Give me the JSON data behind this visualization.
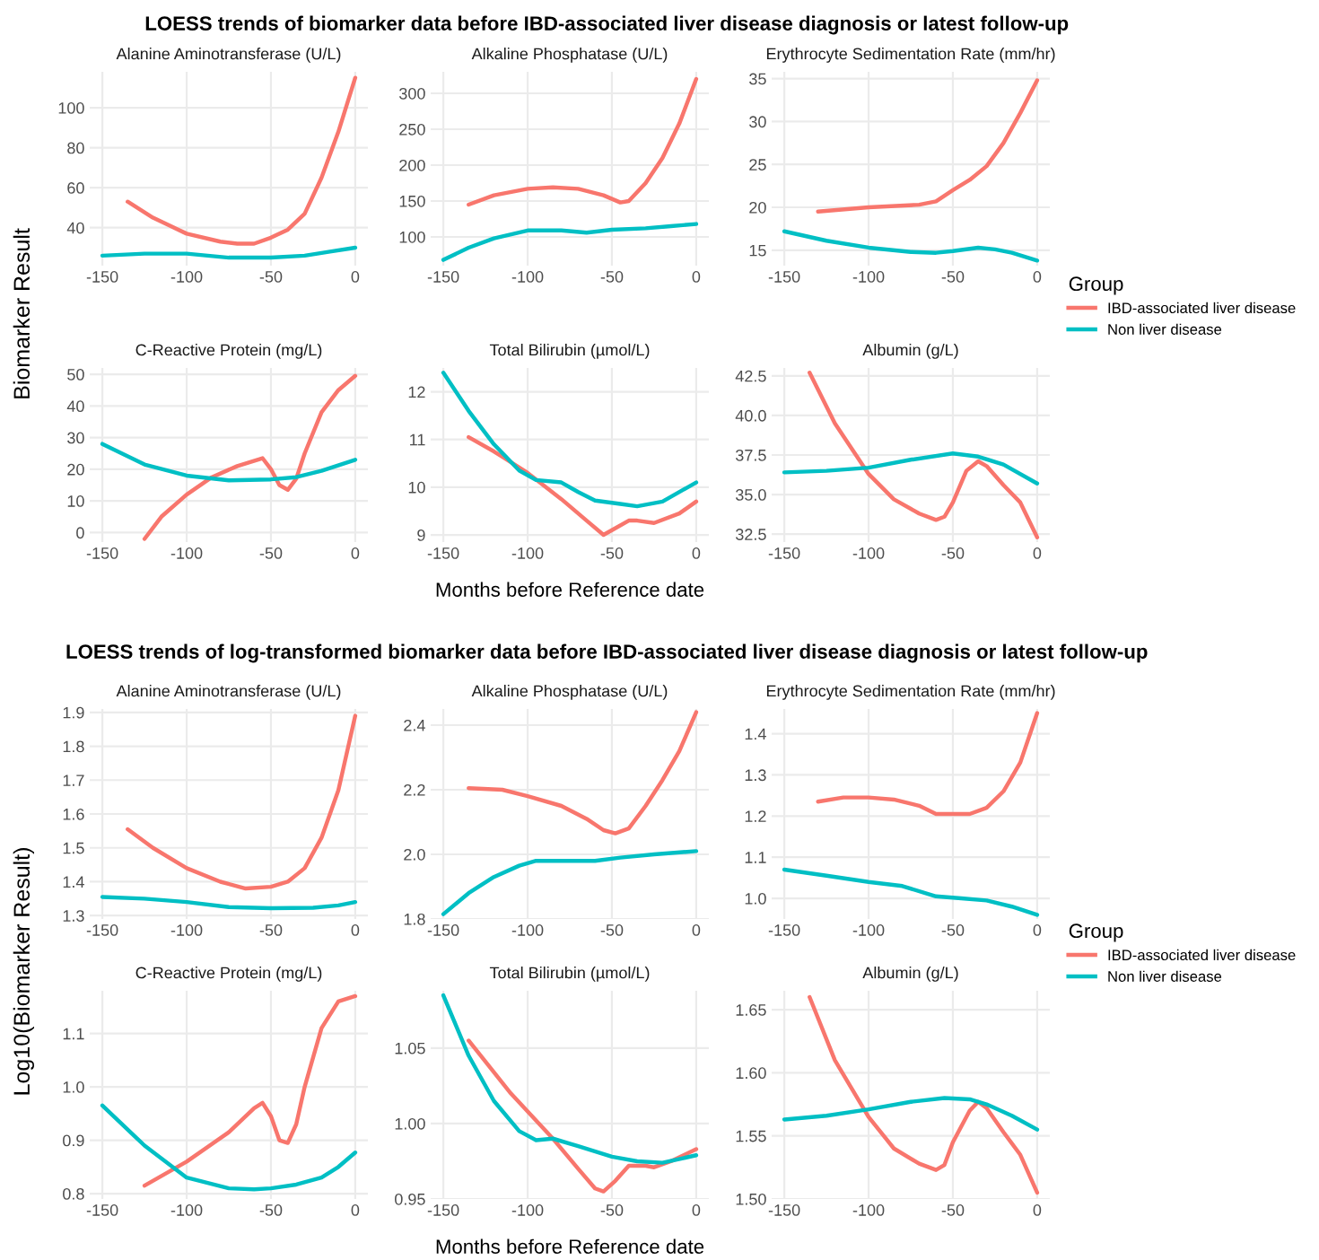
{
  "chart_data": [
    {
      "type": "line",
      "title": "Alanine Aminotransferase (U/L)",
      "ylabel": "Biomarker Result",
      "annotations": [
        "LOESS trends of biomarker data before IBD-associated liver disease diagnosis or latest follow-up"
      ],
      "xlim": [
        -157.5,
        7.5
      ],
      "xticks": [
        -150,
        -100,
        -50,
        0
      ],
      "ylim": [
        21,
        118
      ],
      "yticks": [
        40,
        60,
        80,
        100
      ],
      "grid": true,
      "series": [
        {
          "color": "#f8766d",
          "x": [
            -135,
            -120,
            -100,
            -80,
            -70,
            -60,
            -50,
            -40,
            -30,
            -20,
            -10,
            0
          ],
          "values": [
            53,
            45,
            37,
            33,
            32,
            32,
            35,
            39,
            47,
            65,
            88,
            115
          ]
        },
        {
          "color": "#00bfc4",
          "x": [
            -150,
            -125,
            -100,
            -75,
            -50,
            -30,
            -15,
            0
          ],
          "values": [
            26,
            27,
            27,
            25,
            25,
            26,
            28,
            30
          ]
        }
      ]
    },
    {
      "type": "line",
      "title": "Alkaline Phosphatase (U/L)",
      "xlim": [
        -157.5,
        7.5
      ],
      "xticks": [
        -150,
        -100,
        -50,
        0
      ],
      "ylim": [
        60,
        330
      ],
      "yticks": [
        100,
        150,
        200,
        250,
        300
      ],
      "grid": true,
      "series": [
        {
          "color": "#f8766d",
          "x": [
            -135,
            -120,
            -100,
            -85,
            -70,
            -55,
            -45,
            -40,
            -30,
            -20,
            -10,
            0
          ],
          "values": [
            145,
            158,
            167,
            169,
            167,
            158,
            148,
            150,
            175,
            210,
            258,
            320
          ]
        },
        {
          "color": "#00bfc4",
          "x": [
            -150,
            -135,
            -120,
            -100,
            -80,
            -65,
            -50,
            -30,
            -15,
            0
          ],
          "values": [
            68,
            85,
            98,
            109,
            109,
            106,
            110,
            112,
            115,
            118
          ]
        }
      ]
    },
    {
      "type": "line",
      "title": "Erythrocyte Sedimentation Rate (mm/hr)",
      "legend_title": "Group",
      "legend": "right",
      "xlim": [
        -157.5,
        7.5
      ],
      "xticks": [
        -150,
        -100,
        -50,
        0
      ],
      "ylim": [
        13.2,
        35.8
      ],
      "yticks": [
        15,
        20,
        25,
        30,
        35
      ],
      "grid": true,
      "series": [
        {
          "name": "IBD-associated liver disease",
          "color": "#f8766d",
          "x": [
            -130,
            -100,
            -70,
            -60,
            -50,
            -40,
            -30,
            -20,
            -10,
            0
          ],
          "values": [
            19.5,
            20,
            20.3,
            20.7,
            22,
            23.2,
            24.8,
            27.5,
            31,
            34.8
          ]
        },
        {
          "name": "Non liver disease",
          "color": "#00bfc4",
          "x": [
            -150,
            -125,
            -100,
            -75,
            -60,
            -50,
            -35,
            -25,
            -15,
            0
          ],
          "values": [
            17.2,
            16.1,
            15.3,
            14.8,
            14.7,
            14.9,
            15.3,
            15.1,
            14.7,
            13.8
          ]
        }
      ]
    },
    {
      "type": "line",
      "title": "C-Reactive Protein (mg/L)",
      "xlim": [
        -157.5,
        7.5
      ],
      "xticks": [
        -150,
        -100,
        -50,
        0
      ],
      "ylim": [
        -3,
        52
      ],
      "yticks": [
        0,
        10,
        20,
        30,
        40,
        50
      ],
      "grid": true,
      "series": [
        {
          "color": "#f8766d",
          "x": [
            -125,
            -115,
            -100,
            -85,
            -70,
            -55,
            -50,
            -45,
            -40,
            -35,
            -30,
            -20,
            -10,
            0
          ],
          "values": [
            -2,
            5,
            12,
            17.5,
            21,
            23.5,
            20,
            15,
            13.5,
            17,
            25,
            38,
            45,
            49.5
          ]
        },
        {
          "color": "#00bfc4",
          "x": [
            -150,
            -125,
            -100,
            -75,
            -50,
            -35,
            -20,
            0
          ],
          "values": [
            28,
            21.5,
            18,
            16.5,
            16.8,
            17.5,
            19.5,
            23
          ]
        }
      ]
    },
    {
      "type": "line",
      "title": "Total Bilirubin (µmol/L)",
      "xlabel": "Months before Reference date",
      "xlim": [
        -157.5,
        7.5
      ],
      "xticks": [
        -150,
        -100,
        -50,
        0
      ],
      "ylim": [
        8.85,
        12.5
      ],
      "yticks": [
        9,
        10,
        11,
        12
      ],
      "grid": true,
      "series": [
        {
          "color": "#f8766d",
          "x": [
            -135,
            -120,
            -100,
            -80,
            -65,
            -55,
            -50,
            -40,
            -35,
            -25,
            -10,
            0
          ],
          "values": [
            11.05,
            10.75,
            10.3,
            9.75,
            9.3,
            9.0,
            9.1,
            9.3,
            9.3,
            9.25,
            9.45,
            9.7
          ]
        },
        {
          "color": "#00bfc4",
          "x": [
            -150,
            -135,
            -120,
            -105,
            -95,
            -80,
            -70,
            -60,
            -45,
            -35,
            -20,
            0
          ],
          "values": [
            12.4,
            11.6,
            10.9,
            10.35,
            10.15,
            10.1,
            9.9,
            9.72,
            9.65,
            9.6,
            9.7,
            10.1
          ]
        }
      ]
    },
    {
      "type": "line",
      "title": "Albumin (g/L)",
      "xlim": [
        -157.5,
        7.5
      ],
      "xticks": [
        -150,
        -100,
        -50,
        0
      ],
      "ylim": [
        32,
        43
      ],
      "yticks": [
        32.5,
        {
          "value": 35,
          "label": "35.0"
        },
        37.5,
        {
          "value": 40,
          "label": "40.0"
        },
        42.5
      ],
      "grid": true,
      "series": [
        {
          "color": "#f8766d",
          "x": [
            -135,
            -120,
            -100,
            -85,
            -70,
            -60,
            -55,
            -50,
            -42,
            -35,
            -30,
            -20,
            -10,
            0
          ],
          "values": [
            42.7,
            39.5,
            36.3,
            34.7,
            33.8,
            33.4,
            33.6,
            34.5,
            36.5,
            37.1,
            36.8,
            35.6,
            34.5,
            32.3
          ]
        },
        {
          "color": "#00bfc4",
          "x": [
            -150,
            -125,
            -100,
            -75,
            -50,
            -35,
            -20,
            0
          ],
          "values": [
            36.4,
            36.5,
            36.7,
            37.2,
            37.6,
            37.4,
            36.9,
            35.7
          ]
        }
      ]
    },
    {
      "type": "line",
      "title": "Alanine Aminotransferase (U/L)",
      "ylabel": "Log10(Biomarker Result)",
      "annotations": [
        "LOESS trends of log-transformed biomarker data before IBD-associated liver disease diagnosis or latest follow-up"
      ],
      "xlim": [
        -157.5,
        7.5
      ],
      "xticks": [
        -150,
        -100,
        -50,
        0
      ],
      "ylim": [
        1.29,
        1.91
      ],
      "yticks": [
        1.3,
        1.4,
        1.5,
        1.6,
        1.7,
        1.8,
        1.9
      ],
      "grid": true,
      "series": [
        {
          "color": "#f8766d",
          "x": [
            -135,
            -120,
            -100,
            -80,
            -65,
            -50,
            -40,
            -30,
            -20,
            -10,
            0
          ],
          "values": [
            1.555,
            1.5,
            1.44,
            1.4,
            1.38,
            1.385,
            1.4,
            1.44,
            1.53,
            1.67,
            1.89
          ]
        },
        {
          "color": "#00bfc4",
          "x": [
            -150,
            -125,
            -100,
            -75,
            -50,
            -25,
            -10,
            0
          ],
          "values": [
            1.355,
            1.35,
            1.34,
            1.325,
            1.322,
            1.323,
            1.33,
            1.34
          ]
        }
      ]
    },
    {
      "type": "line",
      "title": "Alkaline Phosphatase (U/L)",
      "xlim": [
        -157.5,
        7.5
      ],
      "xticks": [
        -150,
        -100,
        -50,
        0
      ],
      "ylim": [
        1.8,
        2.45
      ],
      "yticks": [
        1.8,
        {
          "value": 2,
          "label": "2.0"
        },
        2.2,
        2.4
      ],
      "grid": true,
      "series": [
        {
          "color": "#f8766d",
          "x": [
            -135,
            -115,
            -100,
            -80,
            -65,
            -55,
            -48,
            -40,
            -30,
            -20,
            -10,
            0
          ],
          "values": [
            2.205,
            2.2,
            2.18,
            2.15,
            2.11,
            2.075,
            2.065,
            2.08,
            2.15,
            2.23,
            2.32,
            2.44
          ]
        },
        {
          "color": "#00bfc4",
          "x": [
            -150,
            -135,
            -120,
            -105,
            -95,
            -75,
            -60,
            -45,
            -25,
            0
          ],
          "values": [
            1.815,
            1.88,
            1.93,
            1.965,
            1.98,
            1.98,
            1.98,
            1.99,
            2.0,
            2.01
          ]
        }
      ]
    },
    {
      "type": "line",
      "title": "Erythrocyte Sedimentation Rate (mm/hr)",
      "legend_title": "Group",
      "legend": "right",
      "xlim": [
        -157.5,
        7.5
      ],
      "xticks": [
        -150,
        -100,
        -50,
        0
      ],
      "ylim": [
        0.95,
        1.46
      ],
      "yticks": [
        {
          "value": 1,
          "label": "1.0"
        },
        1.1,
        1.2,
        1.3,
        1.4
      ],
      "grid": true,
      "series": [
        {
          "name": "IBD-associated liver disease",
          "color": "#f8766d",
          "x": [
            -130,
            -115,
            -100,
            -85,
            -70,
            -60,
            -50,
            -40,
            -30,
            -20,
            -10,
            0
          ],
          "values": [
            1.235,
            1.245,
            1.245,
            1.24,
            1.225,
            1.205,
            1.205,
            1.205,
            1.22,
            1.26,
            1.33,
            1.45
          ]
        },
        {
          "name": "Non liver disease",
          "color": "#00bfc4",
          "x": [
            -150,
            -125,
            -100,
            -80,
            -60,
            -45,
            -30,
            -15,
            0
          ],
          "values": [
            1.07,
            1.055,
            1.04,
            1.03,
            1.005,
            1.0,
            0.995,
            0.98,
            0.96
          ]
        }
      ]
    },
    {
      "type": "line",
      "title": "C-Reactive Protein (mg/L)",
      "xlim": [
        -157.5,
        7.5
      ],
      "xticks": [
        -150,
        -100,
        -50,
        0
      ],
      "ylim": [
        0.79,
        1.18
      ],
      "yticks": [
        0.8,
        0.9,
        {
          "value": 1,
          "label": "1.0"
        },
        1.1
      ],
      "grid": true,
      "series": [
        {
          "color": "#f8766d",
          "x": [
            -125,
            -100,
            -75,
            -60,
            -55,
            -50,
            -45,
            -40,
            -35,
            -30,
            -20,
            -10,
            0
          ],
          "values": [
            0.815,
            0.86,
            0.915,
            0.96,
            0.97,
            0.945,
            0.9,
            0.895,
            0.93,
            1.0,
            1.11,
            1.16,
            1.17
          ]
        },
        {
          "color": "#00bfc4",
          "x": [
            -150,
            -125,
            -100,
            -75,
            -60,
            -50,
            -35,
            -20,
            -10,
            0
          ],
          "values": [
            0.965,
            0.89,
            0.83,
            0.81,
            0.808,
            0.81,
            0.817,
            0.83,
            0.85,
            0.877
          ]
        }
      ]
    },
    {
      "type": "line",
      "title": "Total Bilirubin (µmol/L)",
      "xlabel": "Months before Reference date",
      "xlim": [
        -157.5,
        7.5
      ],
      "xticks": [
        -150,
        -100,
        -50,
        0
      ],
      "ylim": [
        0.95,
        1.088
      ],
      "yticks": [
        0.95,
        {
          "value": 1,
          "label": "1.00"
        },
        1.05
      ],
      "grid": true,
      "series": [
        {
          "color": "#f8766d",
          "x": [
            -135,
            -110,
            -85,
            -70,
            -60,
            -55,
            -48,
            -40,
            -30,
            -25,
            -15,
            0
          ],
          "values": [
            1.055,
            1.02,
            0.99,
            0.97,
            0.957,
            0.955,
            0.962,
            0.972,
            0.972,
            0.971,
            0.975,
            0.983
          ]
        },
        {
          "color": "#00bfc4",
          "x": [
            -150,
            -135,
            -120,
            -105,
            -95,
            -85,
            -70,
            -50,
            -35,
            -20,
            0
          ],
          "values": [
            1.085,
            1.045,
            1.015,
            0.995,
            0.989,
            0.99,
            0.985,
            0.978,
            0.975,
            0.974,
            0.979
          ]
        }
      ]
    },
    {
      "type": "line",
      "title": "Albumin (g/L)",
      "xlim": [
        -157.5,
        7.5
      ],
      "xticks": [
        -150,
        -100,
        -50,
        0
      ],
      "ylim": [
        1.5,
        1.665
      ],
      "yticks": [
        {
          "value": 1.5,
          "label": "1.50"
        },
        1.55,
        {
          "value": 1.6,
          "label": "1.60"
        },
        1.65
      ],
      "grid": true,
      "series": [
        {
          "color": "#f8766d",
          "x": [
            -135,
            -120,
            -100,
            -85,
            -70,
            -60,
            -55,
            -50,
            -40,
            -35,
            -30,
            -20,
            -10,
            0
          ],
          "values": [
            1.66,
            1.61,
            1.565,
            1.54,
            1.528,
            1.523,
            1.527,
            1.545,
            1.57,
            1.577,
            1.572,
            1.553,
            1.535,
            1.505
          ]
        },
        {
          "color": "#00bfc4",
          "x": [
            -150,
            -125,
            -100,
            -75,
            -55,
            -40,
            -30,
            -15,
            0
          ],
          "values": [
            1.563,
            1.566,
            1.571,
            1.577,
            1.58,
            1.579,
            1.575,
            1.566,
            1.555
          ]
        }
      ]
    }
  ]
}
